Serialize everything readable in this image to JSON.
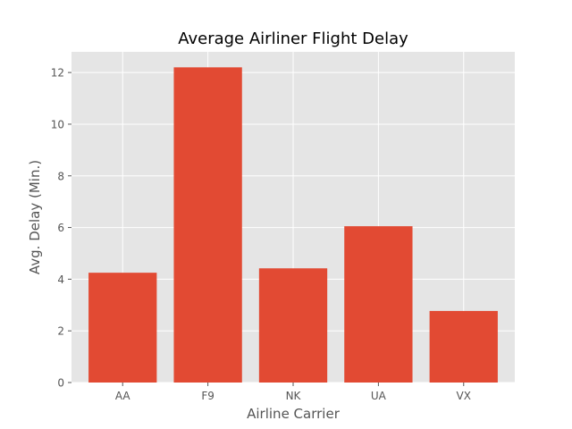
{
  "chart_data": {
    "type": "bar",
    "title": "Average Airliner Flight Delay",
    "xlabel": "Airline Carrier",
    "ylabel": "Avg. Delay (Min.)",
    "categories": [
      "AA",
      "F9",
      "NK",
      "UA",
      "VX"
    ],
    "values": [
      4.25,
      12.2,
      4.42,
      6.05,
      2.77
    ],
    "ylim": [
      0,
      12.8
    ],
    "yticks": [
      0,
      2,
      4,
      6,
      8,
      10,
      12
    ],
    "ytick_labels": [
      "0",
      "2",
      "4",
      "6",
      "8",
      "10",
      "12"
    ],
    "grid": true,
    "legend": false
  },
  "colors": {
    "bar": "#E24A33",
    "plot_background": "#E5E5E5",
    "grid": "#FFFFFF",
    "tick_text": "#555555",
    "tick_mark": "#555555",
    "title_text": "#000000"
  }
}
